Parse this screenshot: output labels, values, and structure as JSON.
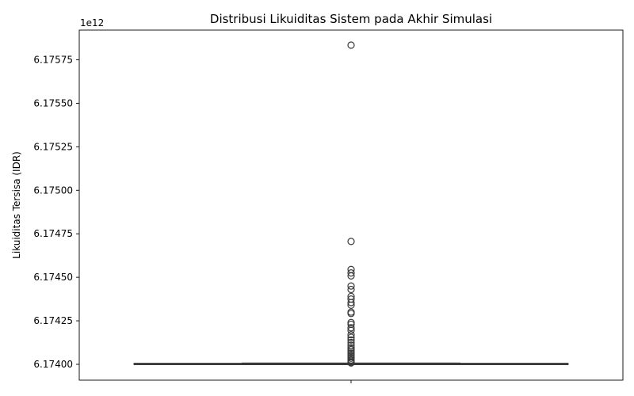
{
  "chart_data": {
    "type": "box",
    "title": "Distribusi Likuiditas Sistem pada Akhir Simulasi",
    "xlabel": "",
    "ylabel": "Likuiditas Tersisa (IDR)",
    "offset_label": "1e12",
    "ylim": [
      6.17398,
      6.1759
    ],
    "yticks": [
      6.174,
      6.17425,
      6.1745,
      6.17475,
      6.175,
      6.17525,
      6.1755,
      6.17575
    ],
    "ytick_labels": [
      "6.17400",
      "6.17425",
      "6.17450",
      "6.17475",
      "6.17500",
      "6.17525",
      "6.17550",
      "6.17575"
    ],
    "grid": false,
    "box": {
      "whisker_low": 6.174,
      "q1": 6.174,
      "median": 6.174001,
      "q3": 6.174003,
      "whisker_high": 6.174004
    },
    "outliers": [
      6.175834,
      6.174706,
      6.174545,
      6.174525,
      6.174508,
      6.17445,
      6.17443,
      6.17439,
      6.174375,
      6.174355,
      6.17434,
      6.1743,
      6.174292,
      6.17424,
      6.17423,
      6.17421,
      6.174195,
      6.17417,
      6.174155,
      6.17414,
      6.174125,
      6.17411,
      6.174095,
      6.174085,
      6.174075,
      6.174065,
      6.174055,
      6.174045,
      6.174035,
      6.174025,
      6.174018,
      6.174012,
      6.174008
    ]
  }
}
